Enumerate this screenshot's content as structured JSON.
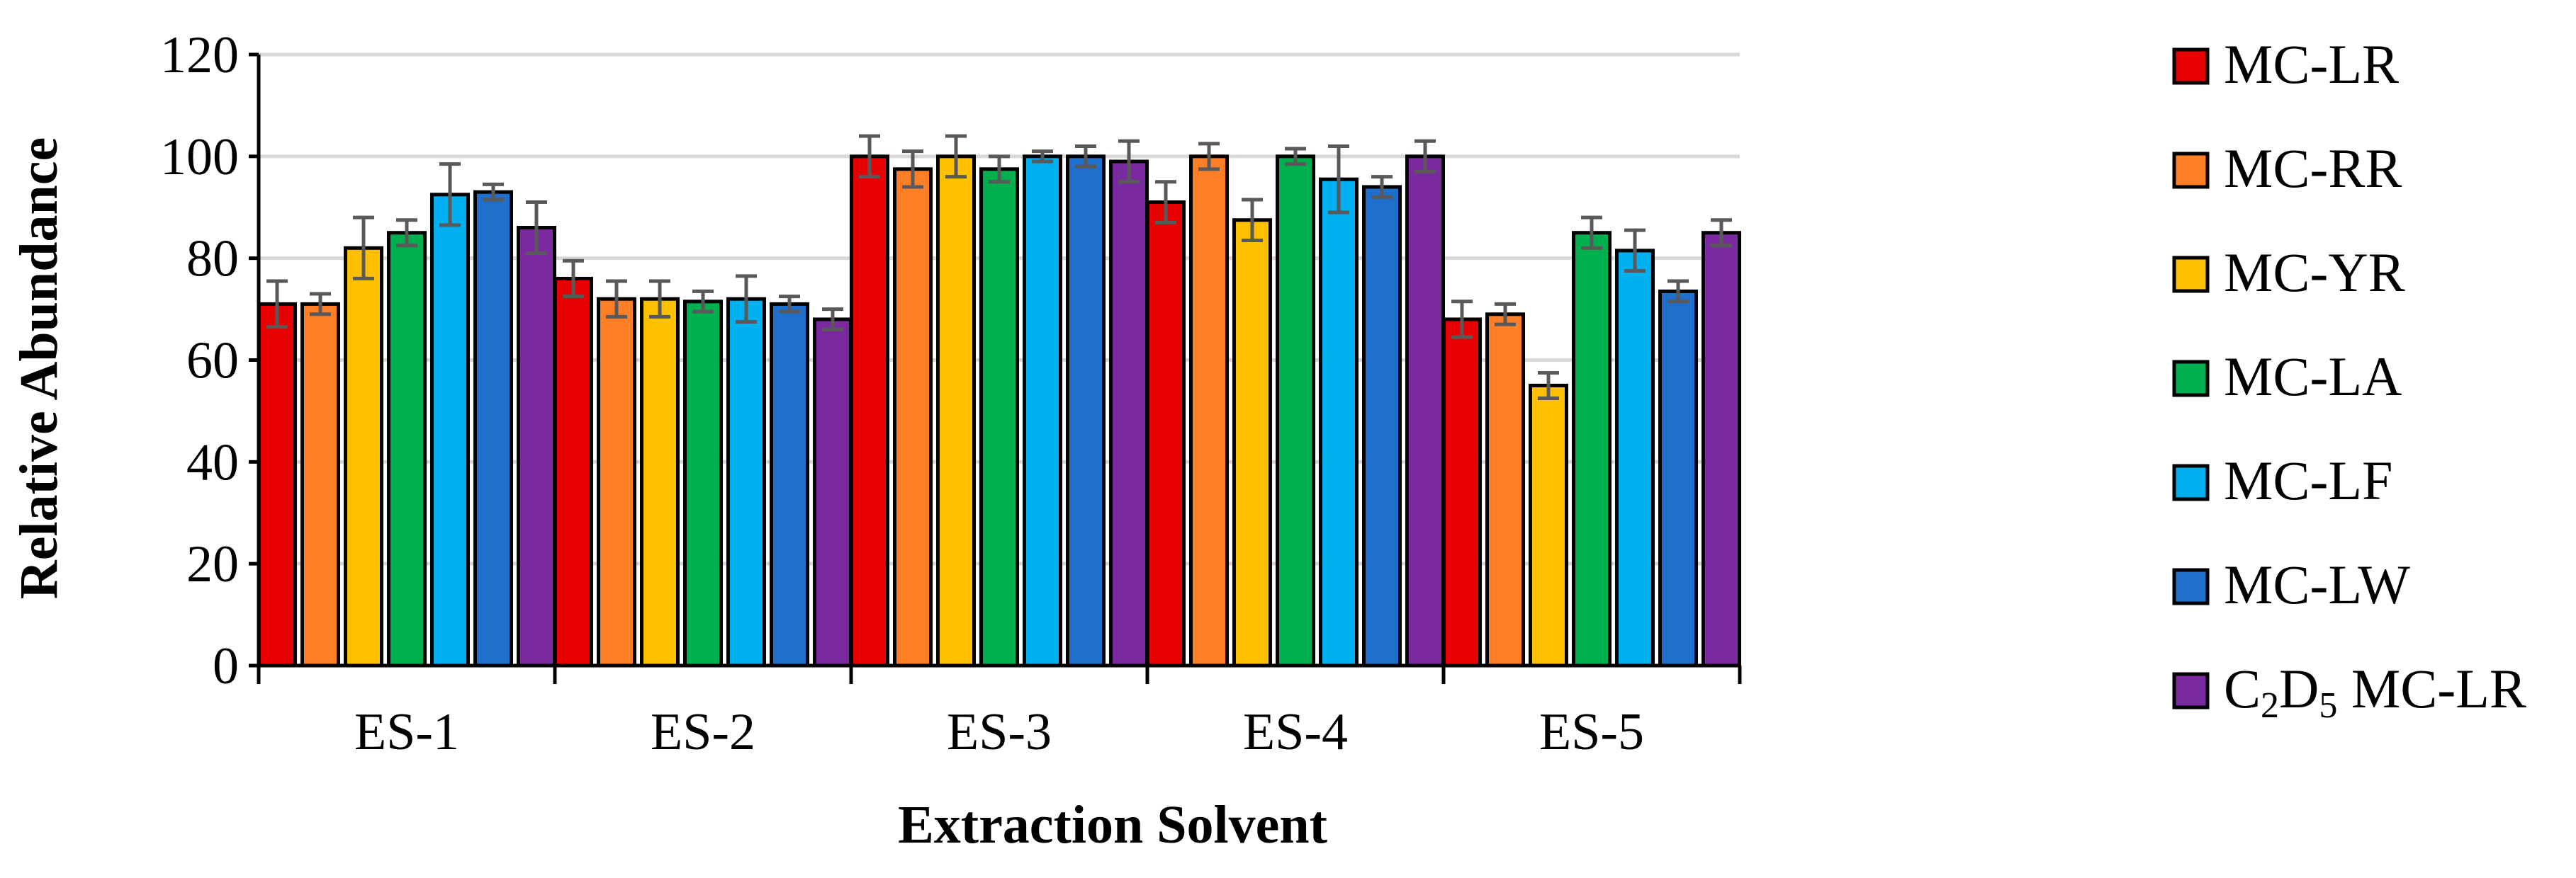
{
  "chart_data": {
    "type": "bar",
    "title": "",
    "xlabel": "Extraction Solvent",
    "ylabel": "Relative Abundance",
    "ylim": [
      0,
      120
    ],
    "yticks": [
      0,
      20,
      40,
      60,
      80,
      100,
      120
    ],
    "grid": true,
    "legend_position": "right",
    "categories": [
      "ES-1",
      "ES-2",
      "ES-3",
      "ES-4",
      "ES-5"
    ],
    "series": [
      {
        "name": "MC-LR",
        "color": "#e60000",
        "values": [
          71,
          76,
          100,
          91,
          68
        ],
        "errors": [
          4.5,
          3.5,
          4,
          4,
          3.5
        ]
      },
      {
        "name": "MC-RR",
        "color": "#ff7f27",
        "values": [
          71,
          72,
          97.5,
          100,
          69
        ],
        "errors": [
          2,
          3.5,
          3.5,
          2.5,
          2
        ]
      },
      {
        "name": "MC-YR",
        "color": "#ffc000",
        "values": [
          82,
          72,
          100,
          87.5,
          55
        ],
        "errors": [
          6,
          3.5,
          4,
          4,
          2.5
        ]
      },
      {
        "name": "MC-LA",
        "color": "#00b04f",
        "values": [
          85,
          71.5,
          97.5,
          100,
          85
        ],
        "errors": [
          2.5,
          2,
          2.5,
          1.5,
          3
        ]
      },
      {
        "name": "MC-LF",
        "color": "#00b0f0",
        "values": [
          92.5,
          72,
          100,
          95.5,
          81.5
        ],
        "errors": [
          6,
          4.5,
          1,
          6.5,
          4
        ]
      },
      {
        "name": "MC-LW",
        "color": "#1f6fcc",
        "values": [
          93,
          71,
          100,
          94,
          73.5
        ],
        "errors": [
          1.5,
          1.5,
          2,
          2,
          2
        ]
      },
      {
        "name": "C2D5 MC-LR",
        "color": "#7a2a9e",
        "values": [
          86,
          68,
          99,
          100,
          85
        ],
        "errors": [
          5,
          2,
          4,
          3,
          2.5
        ]
      }
    ],
    "legend_c2d5": {
      "c": "C",
      "sub1": "2",
      "d": "D",
      "sub2": "5",
      "rest": " MC-LR"
    }
  }
}
